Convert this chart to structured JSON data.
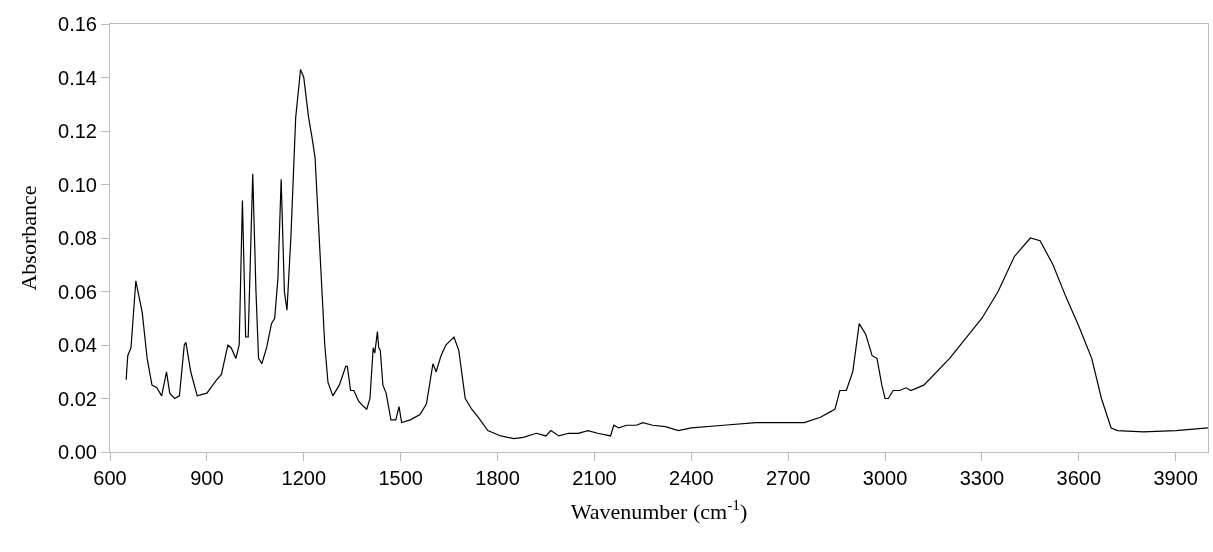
{
  "chart_data": {
    "type": "line",
    "xlabel": "Wavenumber (cm$^{-1}$)",
    "ylabel": "Absorbance",
    "xlim": [
      600,
      4000
    ],
    "xticks": [
      600,
      900,
      1200,
      1500,
      1800,
      2100,
      2400,
      2700,
      3000,
      3300,
      3600,
      3900
    ],
    "ylim": [
      0,
      0.16
    ],
    "yticks": [
      {
        "value": 0,
        "label": "0.00"
      },
      {
        "value": 0.02,
        "label": "0.02"
      },
      {
        "value": 0.04,
        "label": "0.04"
      },
      {
        "value": 0.06,
        "label": "0.06"
      },
      {
        "value": 0.08,
        "label": "0.08"
      },
      {
        "value": 0.1,
        "label": "0.10"
      },
      {
        "value": 0.12,
        "label": "0.12"
      },
      {
        "value": 0.14,
        "label": "0.14"
      },
      {
        "value": 0.16,
        "label": "0.16"
      }
    ],
    "marker": "none",
    "line_style": "solid",
    "series": [
      {
        "color": "#000000",
        "x": [
          650,
          655,
          665,
          680,
          690,
          700,
          715,
          730,
          745,
          760,
          775,
          785,
          800,
          815,
          830,
          835,
          850,
          870,
          900,
          930,
          945,
          965,
          975,
          990,
          1000,
          1010,
          1020,
          1028,
          1042,
          1052,
          1060,
          1070,
          1085,
          1100,
          1110,
          1120,
          1130,
          1140,
          1148,
          1160,
          1175,
          1190,
          1200,
          1215,
          1225,
          1235,
          1250,
          1265,
          1275,
          1290,
          1310,
          1330,
          1335,
          1345,
          1355,
          1370,
          1385,
          1395,
          1405,
          1415,
          1420,
          1428,
          1432,
          1437,
          1445,
          1455,
          1470,
          1485,
          1495,
          1503,
          1530,
          1560,
          1580,
          1600,
          1610,
          1625,
          1640,
          1665,
          1680,
          1700,
          1720,
          1740,
          1770,
          1810,
          1850,
          1880,
          1920,
          1950,
          1965,
          1990,
          2020,
          2050,
          2080,
          2110,
          2150,
          2160,
          2175,
          2200,
          2230,
          2250,
          2280,
          2320,
          2360,
          2400,
          2500,
          2600,
          2700,
          2750,
          2800,
          2830,
          2845,
          2860,
          2880,
          2900,
          2920,
          2940,
          2960,
          2975,
          2990,
          3000,
          3010,
          3025,
          3045,
          3065,
          3080,
          3120,
          3200,
          3300,
          3350,
          3400,
          3450,
          3480,
          3520,
          3560,
          3600,
          3640,
          3670,
          3700,
          3720,
          3800,
          3900,
          4000
        ],
        "values": [
          0.027,
          0.036,
          0.039,
          0.064,
          0.058,
          0.052,
          0.035,
          0.025,
          0.024,
          0.021,
          0.03,
          0.022,
          0.02,
          0.021,
          0.04,
          0.041,
          0.03,
          0.021,
          0.022,
          0.027,
          0.029,
          0.04,
          0.039,
          0.035,
          0.04,
          0.094,
          0.043,
          0.043,
          0.104,
          0.06,
          0.035,
          0.033,
          0.039,
          0.048,
          0.05,
          0.065,
          0.102,
          0.06,
          0.053,
          0.08,
          0.125,
          0.143,
          0.14,
          0.125,
          0.118,
          0.11,
          0.075,
          0.04,
          0.026,
          0.021,
          0.025,
          0.032,
          0.032,
          0.023,
          0.023,
          0.019,
          0.017,
          0.016,
          0.02,
          0.039,
          0.037,
          0.045,
          0.039,
          0.038,
          0.025,
          0.022,
          0.012,
          0.012,
          0.017,
          0.011,
          0.012,
          0.014,
          0.018,
          0.033,
          0.03,
          0.036,
          0.04,
          0.043,
          0.038,
          0.02,
          0.016,
          0.013,
          0.008,
          0.006,
          0.005,
          0.0055,
          0.007,
          0.006,
          0.008,
          0.006,
          0.007,
          0.007,
          0.008,
          0.007,
          0.006,
          0.01,
          0.009,
          0.01,
          0.01,
          0.011,
          0.01,
          0.0095,
          0.008,
          0.009,
          0.01,
          0.011,
          0.011,
          0.011,
          0.013,
          0.015,
          0.016,
          0.023,
          0.023,
          0.03,
          0.048,
          0.044,
          0.036,
          0.035,
          0.025,
          0.02,
          0.02,
          0.023,
          0.023,
          0.024,
          0.023,
          0.025,
          0.035,
          0.05,
          0.06,
          0.073,
          0.08,
          0.079,
          0.07,
          0.058,
          0.047,
          0.035,
          0.02,
          0.009,
          0.008,
          0.0075,
          0.008,
          0.009
        ]
      }
    ]
  }
}
